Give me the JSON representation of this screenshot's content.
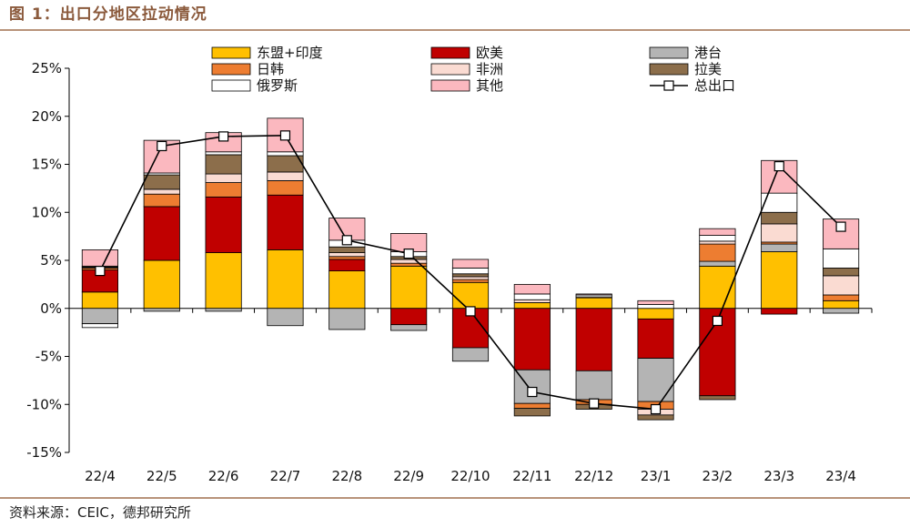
{
  "figure": {
    "title": "图 1：出口分地区拉动情况",
    "source": "资料来源：CEIC，德邦研究所"
  },
  "chart_data": {
    "type": "bar",
    "stacked": true,
    "categories": [
      "22/4",
      "22/5",
      "22/6",
      "22/7",
      "22/8",
      "22/9",
      "22/10",
      "22/11",
      "22/12",
      "23/1",
      "23/2",
      "23/3",
      "23/4"
    ],
    "ylim": [
      -15,
      25
    ],
    "yticks": [
      -15,
      -10,
      -5,
      0,
      5,
      10,
      15,
      20,
      25
    ],
    "ytick_labels": [
      "-15%",
      "-10%",
      "-5%",
      "0%",
      "5%",
      "10%",
      "15%",
      "20%",
      "25%"
    ],
    "grid": false,
    "legend_position": "top",
    "series": [
      {
        "name": "东盟+印度",
        "color": "#FFC000",
        "values": [
          1.7,
          5.0,
          5.8,
          6.1,
          3.9,
          4.4,
          2.7,
          0.6,
          1.1,
          -1.1,
          4.4,
          5.9,
          0.8
        ]
      },
      {
        "name": "欧美",
        "color": "#C00000",
        "values": [
          2.3,
          5.6,
          5.8,
          5.7,
          1.2,
          -1.7,
          -4.1,
          -6.4,
          -6.5,
          -4.1,
          -9.1,
          -0.6,
          0.0
        ]
      },
      {
        "name": "港台",
        "color": "#B4B4B4",
        "values": [
          -1.6,
          -0.3,
          -0.3,
          -1.8,
          -2.2,
          -0.6,
          -1.4,
          -3.5,
          -3.0,
          -4.5,
          0.5,
          0.8,
          -0.5
        ]
      },
      {
        "name": "日韩",
        "color": "#ED7D31",
        "values": [
          0.2,
          1.3,
          1.5,
          1.5,
          0.3,
          0.3,
          0.3,
          -0.5,
          -0.5,
          -0.8,
          1.8,
          0.2,
          0.6
        ]
      },
      {
        "name": "非洲",
        "color": "#FADBD2",
        "values": [
          0.1,
          0.5,
          0.9,
          0.9,
          0.4,
          0.4,
          0.3,
          0.3,
          0.1,
          -0.6,
          0.3,
          1.9,
          2.0
        ]
      },
      {
        "name": "拉美",
        "color": "#8C6E4B",
        "values": [
          0.1,
          1.5,
          2.0,
          1.7,
          0.6,
          0.3,
          0.3,
          -0.8,
          -0.5,
          -0.5,
          -0.4,
          1.2,
          0.8
        ]
      },
      {
        "name": "俄罗斯",
        "color": "#FFFFFF",
        "values": [
          -0.4,
          0.2,
          0.3,
          0.4,
          0.7,
          0.5,
          0.6,
          0.6,
          0.2,
          0.4,
          0.6,
          2.0,
          2.0
        ]
      },
      {
        "name": "其他",
        "color": "#FBB8BF",
        "values": [
          1.7,
          3.4,
          2.0,
          3.5,
          2.3,
          1.9,
          0.9,
          1.0,
          0.1,
          0.4,
          0.7,
          3.4,
          3.1
        ]
      }
    ],
    "line": {
      "name": "总出口",
      "values": [
        3.9,
        16.9,
        17.9,
        18.0,
        7.1,
        5.7,
        -0.3,
        -8.7,
        -9.9,
        -10.5,
        -1.3,
        14.8,
        8.5
      ]
    }
  }
}
